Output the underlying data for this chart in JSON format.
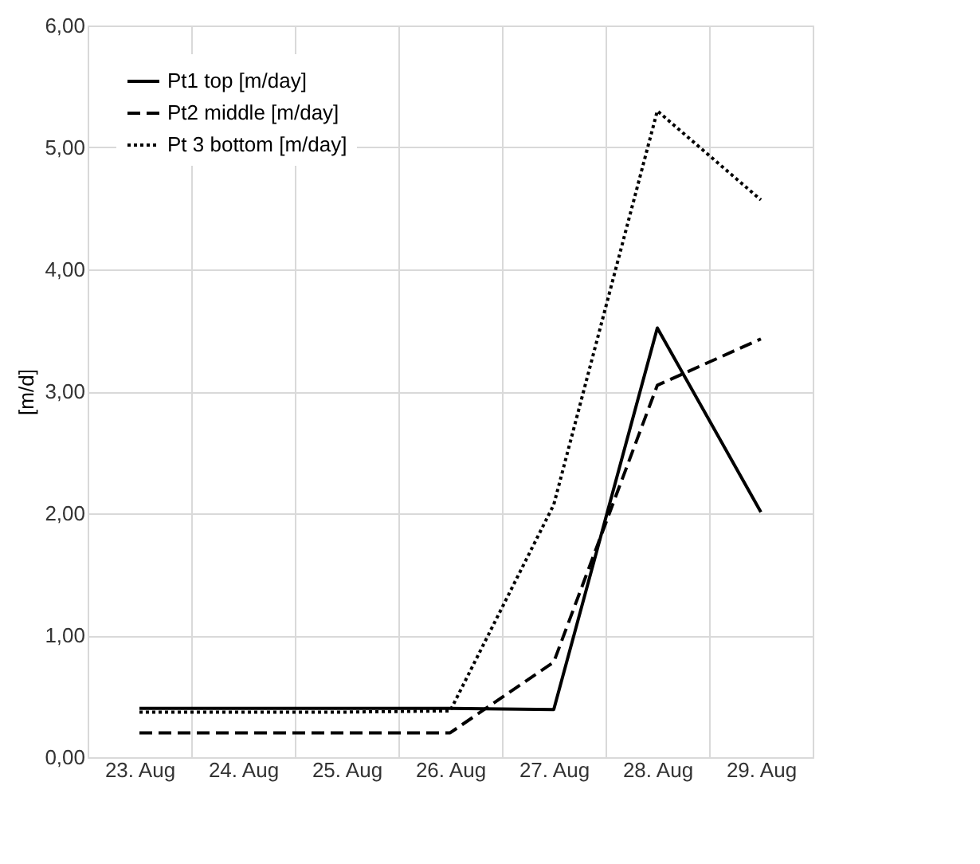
{
  "chart_data": {
    "type": "line",
    "ylabel": "[m/d]",
    "categories": [
      "23. Aug",
      "24. Aug",
      "25. Aug",
      "26. Aug",
      "27. Aug",
      "28. Aug",
      "29. Aug"
    ],
    "ylim": [
      0,
      6
    ],
    "yticks": [
      {
        "value": 0,
        "label": "0,00"
      },
      {
        "value": 1,
        "label": "1,00"
      },
      {
        "value": 2,
        "label": "2,00"
      },
      {
        "value": 3,
        "label": "3,00"
      },
      {
        "value": 4,
        "label": "4,00"
      },
      {
        "value": 5,
        "label": "5,00"
      },
      {
        "value": 6,
        "label": "6,00"
      }
    ],
    "series": [
      {
        "name": "Pt1 top [m/day]",
        "color": "#000000",
        "line_style": "solid",
        "values": [
          0.4,
          0.4,
          0.4,
          0.4,
          0.39,
          3.52,
          2.01
        ]
      },
      {
        "name": "Pt2 middle [m/day]",
        "color": "#000000",
        "line_style": "dashed",
        "values": [
          0.2,
          0.2,
          0.2,
          0.2,
          0.78,
          3.05,
          3.43
        ]
      },
      {
        "name": "Pt 3 bottom [m/day]",
        "color": "#000000",
        "line_style": "dotted",
        "values": [
          0.37,
          0.37,
          0.37,
          0.38,
          2.07,
          5.3,
          4.57
        ]
      }
    ],
    "grid": true,
    "legend": "top left",
    "marker": "none"
  }
}
